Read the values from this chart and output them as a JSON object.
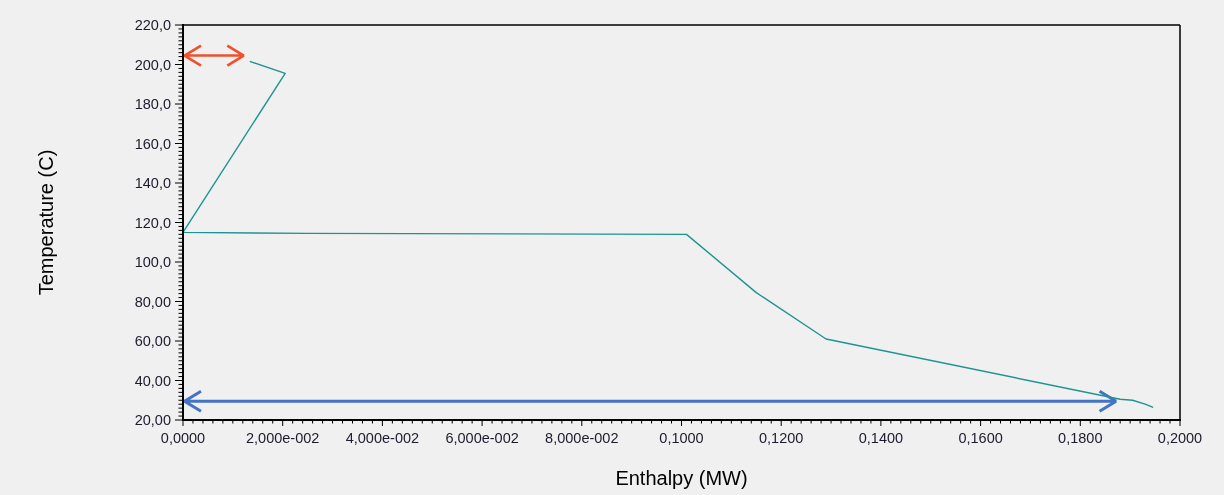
{
  "chart_data": {
    "type": "line",
    "xlabel": "Enthalpy (MW)",
    "ylabel": "Temperature (C)",
    "series": [
      {
        "color": "#1e9490",
        "x": [
          0.0135,
          0.0205,
          0,
          0.025,
          0.101,
          0.115,
          0.129,
          0.188,
          0.1905,
          0.193,
          0.1945
        ],
        "values": [
          201.5,
          195.5,
          115,
          114.5,
          114,
          84.5,
          61,
          30.5,
          30,
          28,
          26.5
        ]
      }
    ],
    "xlim": [
      0,
      0.2
    ],
    "ylim": [
      20,
      220
    ],
    "xticks": [
      {
        "value": 0,
        "label": "0,0000"
      },
      {
        "value": 0.002,
        "label": null
      },
      {
        "value": 0.004,
        "label": null
      },
      {
        "value": 0.006,
        "label": null
      },
      {
        "value": 0.008,
        "label": null
      },
      {
        "value": 0.01,
        "label": null
      },
      {
        "value": 0.012,
        "label": null
      },
      {
        "value": 0.014,
        "label": null
      },
      {
        "value": 0.016,
        "label": null
      },
      {
        "value": 0.018,
        "label": null
      },
      {
        "value": 0.02,
        "label": "2,000e-002"
      },
      {
        "value": 0.022,
        "label": null
      },
      {
        "value": 0.024,
        "label": null
      },
      {
        "value": 0.026,
        "label": null
      },
      {
        "value": 0.028,
        "label": null
      },
      {
        "value": 0.03,
        "label": null
      },
      {
        "value": 0.032,
        "label": null
      },
      {
        "value": 0.034,
        "label": null
      },
      {
        "value": 0.036,
        "label": null
      },
      {
        "value": 0.038,
        "label": null
      },
      {
        "value": 0.04,
        "label": "4,000e-002"
      },
      {
        "value": 0.042,
        "label": null
      },
      {
        "value": 0.044,
        "label": null
      },
      {
        "value": 0.046,
        "label": null
      },
      {
        "value": 0.048,
        "label": null
      },
      {
        "value": 0.05,
        "label": null
      },
      {
        "value": 0.052,
        "label": null
      },
      {
        "value": 0.054,
        "label": null
      },
      {
        "value": 0.056,
        "label": null
      },
      {
        "value": 0.058,
        "label": null
      },
      {
        "value": 0.06,
        "label": "6,000e-002"
      },
      {
        "value": 0.062,
        "label": null
      },
      {
        "value": 0.064,
        "label": null
      },
      {
        "value": 0.066,
        "label": null
      },
      {
        "value": 0.068,
        "label": null
      },
      {
        "value": 0.07,
        "label": null
      },
      {
        "value": 0.072,
        "label": null
      },
      {
        "value": 0.074,
        "label": null
      },
      {
        "value": 0.076,
        "label": null
      },
      {
        "value": 0.078,
        "label": null
      },
      {
        "value": 0.08,
        "label": "8,000e-002"
      },
      {
        "value": 0.082,
        "label": null
      },
      {
        "value": 0.084,
        "label": null
      },
      {
        "value": 0.086,
        "label": null
      },
      {
        "value": 0.088,
        "label": null
      },
      {
        "value": 0.09,
        "label": null
      },
      {
        "value": 0.092,
        "label": null
      },
      {
        "value": 0.094,
        "label": null
      },
      {
        "value": 0.096,
        "label": null
      },
      {
        "value": 0.098,
        "label": null
      },
      {
        "value": 0.1,
        "label": "0,1000"
      },
      {
        "value": 0.102,
        "label": null
      },
      {
        "value": 0.104,
        "label": null
      },
      {
        "value": 0.106,
        "label": null
      },
      {
        "value": 0.108,
        "label": null
      },
      {
        "value": 0.11,
        "label": null
      },
      {
        "value": 0.112,
        "label": null
      },
      {
        "value": 0.114,
        "label": null
      },
      {
        "value": 0.116,
        "label": null
      },
      {
        "value": 0.118,
        "label": null
      },
      {
        "value": 0.12,
        "label": "0,1200"
      },
      {
        "value": 0.122,
        "label": null
      },
      {
        "value": 0.124,
        "label": null
      },
      {
        "value": 0.126,
        "label": null
      },
      {
        "value": 0.128,
        "label": null
      },
      {
        "value": 0.13,
        "label": null
      },
      {
        "value": 0.132,
        "label": null
      },
      {
        "value": 0.134,
        "label": null
      },
      {
        "value": 0.136,
        "label": null
      },
      {
        "value": 0.138,
        "label": null
      },
      {
        "value": 0.14,
        "label": "0,1400"
      },
      {
        "value": 0.142,
        "label": null
      },
      {
        "value": 0.144,
        "label": null
      },
      {
        "value": 0.146,
        "label": null
      },
      {
        "value": 0.148,
        "label": null
      },
      {
        "value": 0.15,
        "label": null
      },
      {
        "value": 0.152,
        "label": null
      },
      {
        "value": 0.154,
        "label": null
      },
      {
        "value": 0.156,
        "label": null
      },
      {
        "value": 0.158,
        "label": null
      },
      {
        "value": 0.16,
        "label": "0,1600"
      },
      {
        "value": 0.162,
        "label": null
      },
      {
        "value": 0.164,
        "label": null
      },
      {
        "value": 0.166,
        "label": null
      },
      {
        "value": 0.168,
        "label": null
      },
      {
        "value": 0.17,
        "label": null
      },
      {
        "value": 0.172,
        "label": null
      },
      {
        "value": 0.174,
        "label": null
      },
      {
        "value": 0.176,
        "label": null
      },
      {
        "value": 0.178,
        "label": null
      },
      {
        "value": 0.18,
        "label": "0,1800"
      },
      {
        "value": 0.182,
        "label": null
      },
      {
        "value": 0.184,
        "label": null
      },
      {
        "value": 0.186,
        "label": null
      },
      {
        "value": 0.188,
        "label": null
      },
      {
        "value": 0.19,
        "label": null
      },
      {
        "value": 0.192,
        "label": null
      },
      {
        "value": 0.194,
        "label": null
      },
      {
        "value": 0.196,
        "label": null
      },
      {
        "value": 0.198,
        "label": null
      },
      {
        "value": 0.2,
        "label": "0,2000"
      }
    ],
    "yticks": [
      {
        "value": 20,
        "label": "20,00"
      },
      {
        "value": 22,
        "label": null
      },
      {
        "value": 24,
        "label": null
      },
      {
        "value": 26,
        "label": null
      },
      {
        "value": 28,
        "label": null
      },
      {
        "value": 30,
        "label": null
      },
      {
        "value": 32,
        "label": null
      },
      {
        "value": 34,
        "label": null
      },
      {
        "value": 36,
        "label": null
      },
      {
        "value": 38,
        "label": null
      },
      {
        "value": 40,
        "label": "40,00"
      },
      {
        "value": 42,
        "label": null
      },
      {
        "value": 44,
        "label": null
      },
      {
        "value": 46,
        "label": null
      },
      {
        "value": 48,
        "label": null
      },
      {
        "value": 50,
        "label": null
      },
      {
        "value": 52,
        "label": null
      },
      {
        "value": 54,
        "label": null
      },
      {
        "value": 56,
        "label": null
      },
      {
        "value": 58,
        "label": null
      },
      {
        "value": 60,
        "label": "60,00"
      },
      {
        "value": 62,
        "label": null
      },
      {
        "value": 64,
        "label": null
      },
      {
        "value": 66,
        "label": null
      },
      {
        "value": 68,
        "label": null
      },
      {
        "value": 70,
        "label": null
      },
      {
        "value": 72,
        "label": null
      },
      {
        "value": 74,
        "label": null
      },
      {
        "value": 76,
        "label": null
      },
      {
        "value": 78,
        "label": null
      },
      {
        "value": 80,
        "label": "80,00"
      },
      {
        "value": 82,
        "label": null
      },
      {
        "value": 84,
        "label": null
      },
      {
        "value": 86,
        "label": null
      },
      {
        "value": 88,
        "label": null
      },
      {
        "value": 90,
        "label": null
      },
      {
        "value": 92,
        "label": null
      },
      {
        "value": 94,
        "label": null
      },
      {
        "value": 96,
        "label": null
      },
      {
        "value": 98,
        "label": null
      },
      {
        "value": 100,
        "label": "100,0"
      },
      {
        "value": 102,
        "label": null
      },
      {
        "value": 104,
        "label": null
      },
      {
        "value": 106,
        "label": null
      },
      {
        "value": 108,
        "label": null
      },
      {
        "value": 110,
        "label": null
      },
      {
        "value": 112,
        "label": null
      },
      {
        "value": 114,
        "label": null
      },
      {
        "value": 116,
        "label": null
      },
      {
        "value": 118,
        "label": null
      },
      {
        "value": 120,
        "label": "120,0"
      },
      {
        "value": 122,
        "label": null
      },
      {
        "value": 124,
        "label": null
      },
      {
        "value": 126,
        "label": null
      },
      {
        "value": 128,
        "label": null
      },
      {
        "value": 130,
        "label": null
      },
      {
        "value": 132,
        "label": null
      },
      {
        "value": 134,
        "label": null
      },
      {
        "value": 136,
        "label": null
      },
      {
        "value": 138,
        "label": null
      },
      {
        "value": 140,
        "label": "140,0"
      },
      {
        "value": 142,
        "label": null
      },
      {
        "value": 144,
        "label": null
      },
      {
        "value": 146,
        "label": null
      },
      {
        "value": 148,
        "label": null
      },
      {
        "value": 150,
        "label": null
      },
      {
        "value": 152,
        "label": null
      },
      {
        "value": 154,
        "label": null
      },
      {
        "value": 156,
        "label": null
      },
      {
        "value": 158,
        "label": null
      },
      {
        "value": 160,
        "label": "160,0"
      },
      {
        "value": 162,
        "label": null
      },
      {
        "value": 164,
        "label": null
      },
      {
        "value": 166,
        "label": null
      },
      {
        "value": 168,
        "label": null
      },
      {
        "value": 170,
        "label": null
      },
      {
        "value": 172,
        "label": null
      },
      {
        "value": 174,
        "label": null
      },
      {
        "value": 176,
        "label": null
      },
      {
        "value": 178,
        "label": null
      },
      {
        "value": 180,
        "label": "180,0"
      },
      {
        "value": 182,
        "label": null
      },
      {
        "value": 184,
        "label": null
      },
      {
        "value": 186,
        "label": null
      },
      {
        "value": 188,
        "label": null
      },
      {
        "value": 190,
        "label": null
      },
      {
        "value": 192,
        "label": null
      },
      {
        "value": 194,
        "label": null
      },
      {
        "value": 196,
        "label": null
      },
      {
        "value": 198,
        "label": null
      },
      {
        "value": 200,
        "label": "200,0"
      },
      {
        "value": 202,
        "label": null
      },
      {
        "value": 204,
        "label": null
      },
      {
        "value": 206,
        "label": null
      },
      {
        "value": 208,
        "label": null
      },
      {
        "value": 210,
        "label": null
      },
      {
        "value": 212,
        "label": null
      },
      {
        "value": 214,
        "label": null
      },
      {
        "value": 216,
        "label": null
      },
      {
        "value": 218,
        "label": null
      },
      {
        "value": 220,
        "label": "220,0"
      }
    ]
  }
}
